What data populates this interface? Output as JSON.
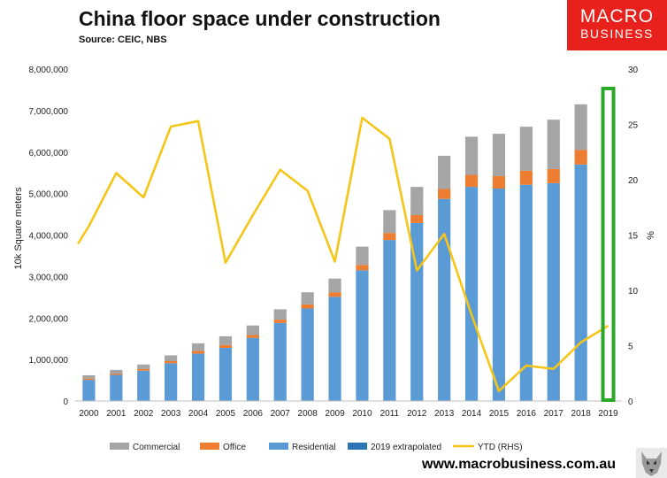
{
  "header": {
    "title": "China floor space under construction",
    "source": "Source: CEIC, NBS"
  },
  "logo": {
    "line1": "MACRO",
    "line2": "BUSINESS"
  },
  "footer": {
    "url": "www.macrobusiness.com.au"
  },
  "colors": {
    "commercial": "#a5a5a5",
    "office": "#ed7d31",
    "residential": "#5b9bd5",
    "extrapolated": "#2e75b6",
    "ytd": "#f5c518",
    "highlight_box": "#2aa82a"
  },
  "chart_data": {
    "type": "bar",
    "stacked": true,
    "categories": [
      "2000",
      "2001",
      "2002",
      "2003",
      "2004",
      "2005",
      "2006",
      "2007",
      "2008",
      "2009",
      "2010",
      "2011",
      "2012",
      "2013",
      "2014",
      "2015",
      "2016",
      "2017",
      "2018",
      "2019"
    ],
    "ylabel": "10k Square meters",
    "y2label": "%",
    "ylim": [
      0,
      8000000
    ],
    "y2lim": [
      0,
      30
    ],
    "yticks": [
      "0",
      "1,000,000",
      "2,000,000",
      "3,000,000",
      "4,000,000",
      "5,000,000",
      "6,000,000",
      "7,000,000",
      "8,000,000"
    ],
    "y2ticks": [
      "0",
      "5",
      "10",
      "15",
      "20",
      "25",
      "30"
    ],
    "grid": false,
    "legend": "bottom",
    "series": [
      {
        "name": "Commercial",
        "kind": "bar",
        "values": [
          80000,
          90000,
          110000,
          140000,
          180000,
          210000,
          230000,
          250000,
          290000,
          330000,
          440000,
          550000,
          680000,
          800000,
          920000,
          1020000,
          1060000,
          1190000,
          1100000,
          null
        ]
      },
      {
        "name": "Office",
        "kind": "bar",
        "values": [
          30000,
          30000,
          40000,
          50000,
          70000,
          70000,
          70000,
          80000,
          100000,
          110000,
          130000,
          170000,
          190000,
          240000,
          290000,
          300000,
          340000,
          340000,
          350000,
          null
        ]
      },
      {
        "name": "Residential",
        "kind": "bar",
        "values": [
          510000,
          630000,
          730000,
          910000,
          1140000,
          1280000,
          1520000,
          1880000,
          2230000,
          2510000,
          3150000,
          3880000,
          4290000,
          4870000,
          5160000,
          5120000,
          5210000,
          5250000,
          5700000,
          null
        ]
      },
      {
        "name": "2019 extrapolated",
        "kind": "bar",
        "values": [
          null,
          null,
          null,
          null,
          null,
          null,
          null,
          null,
          null,
          null,
          null,
          null,
          null,
          null,
          null,
          null,
          null,
          null,
          null,
          null
        ]
      },
      {
        "name": "YTD (RHS)",
        "kind": "line",
        "axis": "right",
        "points": [
          [
            -0.4,
            14.2
          ],
          [
            0,
            15.8
          ],
          [
            1,
            20.6
          ],
          [
            2,
            18.4
          ],
          [
            3,
            24.8
          ],
          [
            4,
            25.3
          ],
          [
            5,
            12.5
          ],
          [
            6,
            16.8
          ],
          [
            7,
            20.9
          ],
          [
            8,
            19.0
          ],
          [
            9,
            12.6
          ],
          [
            10,
            25.6
          ],
          [
            11,
            23.7
          ],
          [
            12,
            11.8
          ],
          [
            13,
            15.1
          ],
          [
            14,
            7.8
          ],
          [
            15,
            0.9
          ],
          [
            16,
            3.2
          ],
          [
            17,
            2.9
          ],
          [
            18,
            5.3
          ],
          [
            19,
            6.8
          ]
        ]
      }
    ]
  }
}
